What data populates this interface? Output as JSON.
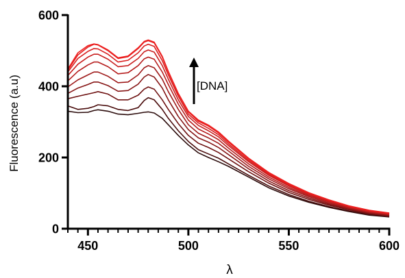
{
  "chart_data": {
    "type": "line",
    "title": "",
    "xlabel": "λ",
    "ylabel": "Fluorescence (a.u)",
    "xlim": [
      440,
      600
    ],
    "ylim": [
      0,
      600
    ],
    "x_ticks": [
      450,
      500,
      550,
      600
    ],
    "y_ticks": [
      0,
      200,
      400,
      600
    ],
    "x_minor_step": 5,
    "grid": false,
    "legend": "none",
    "annotation": {
      "text": "[DNA]",
      "arrow": "up"
    },
    "x": [
      440,
      445,
      450,
      453,
      455,
      460,
      465,
      470,
      475,
      478,
      480,
      483,
      487,
      490,
      495,
      500,
      505,
      510,
      515,
      520,
      530,
      540,
      550,
      560,
      570,
      580,
      590,
      600
    ],
    "series": [
      {
        "color": "#2a0a0a",
        "values": [
          330,
          326,
          327,
          332,
          334,
          330,
          322,
          320,
          324,
          327,
          328,
          325,
          310,
          292,
          262,
          235,
          213,
          200,
          188,
          175,
          145,
          115,
          92,
          74,
          60,
          48,
          38,
          33
        ]
      },
      {
        "color": "#4a0d0d",
        "values": [
          345,
          335,
          338,
          343,
          348,
          345,
          335,
          332,
          340,
          360,
          368,
          362,
          335,
          310,
          275,
          245,
          222,
          210,
          198,
          182,
          150,
          120,
          96,
          77,
          62,
          50,
          40,
          34
        ]
      },
      {
        "color": "#6e1212",
        "values": [
          365,
          372,
          378,
          382,
          385,
          378,
          362,
          362,
          375,
          392,
          398,
          392,
          362,
          335,
          295,
          262,
          240,
          228,
          214,
          196,
          160,
          128,
          102,
          82,
          66,
          53,
          42,
          36
        ]
      },
      {
        "color": "#861616",
        "values": [
          380,
          395,
          405,
          412,
          412,
          402,
          386,
          388,
          406,
          426,
          433,
          426,
          395,
          362,
          315,
          278,
          255,
          243,
          228,
          208,
          168,
          134,
          107,
          86,
          69,
          55,
          44,
          37
        ]
      },
      {
        "color": "#9e1a1a",
        "values": [
          398,
          418,
          432,
          440,
          440,
          428,
          410,
          412,
          432,
          452,
          458,
          452,
          420,
          385,
          335,
          292,
          268,
          255,
          240,
          218,
          175,
          140,
          112,
          90,
          72,
          57,
          46,
          39
        ]
      },
      {
        "color": "#b51c1c",
        "values": [
          415,
          442,
          460,
          468,
          468,
          455,
          435,
          438,
          458,
          477,
          482,
          476,
          440,
          405,
          350,
          305,
          280,
          266,
          250,
          226,
          182,
          145,
          116,
          93,
          75,
          59,
          47,
          40
        ]
      },
      {
        "color": "#c81d1d",
        "values": [
          430,
          462,
          482,
          490,
          490,
          476,
          455,
          458,
          478,
          497,
          502,
          496,
          458,
          420,
          362,
          315,
          290,
          275,
          258,
          233,
          188,
          150,
          120,
          96,
          77,
          61,
          49,
          41
        ]
      },
      {
        "color": "#d81e1e",
        "values": [
          440,
          478,
          498,
          506,
          505,
          490,
          468,
          473,
          494,
          513,
          518,
          512,
          472,
          432,
          372,
          322,
          297,
          282,
          264,
          238,
          192,
          153,
          123,
          98,
          79,
          62,
          50,
          42
        ]
      },
      {
        "color": "#e41f1f",
        "values": [
          445,
          488,
          510,
          518,
          516,
          500,
          478,
          483,
          506,
          524,
          528,
          522,
          482,
          440,
          378,
          328,
          302,
          288,
          269,
          243,
          196,
          156,
          125,
          100,
          80,
          63,
          51,
          43
        ]
      },
      {
        "color": "#ee2020",
        "values": [
          448,
          494,
          514,
          519,
          517,
          502,
          480,
          485,
          508,
          526,
          530,
          524,
          484,
          442,
          380,
          330,
          305,
          291,
          272,
          246,
          198,
          158,
          127,
          101,
          81,
          64,
          52,
          44
        ]
      }
    ]
  }
}
